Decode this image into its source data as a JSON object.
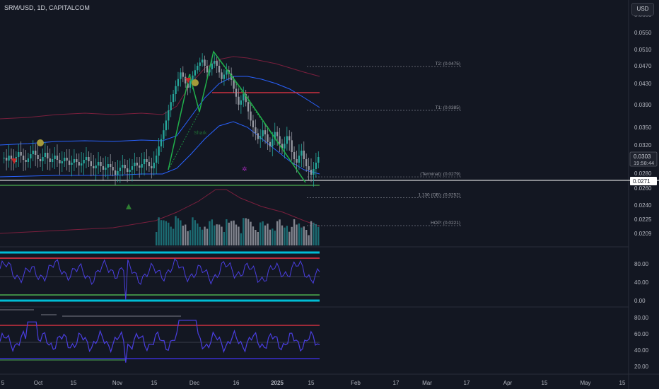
{
  "header": {
    "title": "SRM/USD, 1D, CAPITALCOM",
    "currency_button": "USD"
  },
  "colors": {
    "background": "#131722",
    "up_candle": "#26a69a",
    "down_candle": "#9598a1",
    "pattern": "#21b04b",
    "upper_band": "#7a1f3d",
    "mid_band": "#2962ff",
    "rsi_line": "#4a3ee0",
    "level_red": "#f23645",
    "level_green": "#4caf50",
    "level_cyan": "#00bcd4"
  },
  "chart_data": [
    {
      "type": "candlestick",
      "panel": "price",
      "y_ticks": [
        "0.0550",
        "0.0510",
        "0.0470",
        "0.0430",
        "0.0390",
        "0.0350",
        "0.0320",
        "0.0280",
        "0.0260",
        "0.0240",
        "0.0225",
        "0.0209"
      ],
      "top_tick_partial": "0.0600",
      "last_price": "0.0303",
      "countdown": "19:58:44",
      "crosshair_price": "0.0271",
      "x_ticks": [
        "5",
        "Oct",
        "15",
        "Nov",
        "15",
        "Dec",
        "16",
        "2025",
        "15",
        "Feb",
        "17",
        "Mar",
        "17",
        "Apr",
        "15",
        "May",
        "15"
      ],
      "levels": [
        {
          "label": "T2: (0.0475)",
          "value": 0.0475
        },
        {
          "label": "T1: (0.0385)",
          "value": 0.0385
        },
        {
          "label": "(Terminal): (0.0279)",
          "value": 0.0279
        },
        {
          "label": "1.130 (OB): (0.0252)",
          "value": 0.0252
        },
        {
          "label": "HOP: (0.0221)",
          "value": 0.0221
        }
      ],
      "pattern_label": "Shark",
      "series": {
        "close": [
          0.0302,
          0.0298,
          0.0305,
          0.03,
          0.0296,
          0.0303,
          0.031,
          0.0305,
          0.0299,
          0.0296,
          0.0301,
          0.0307,
          0.0312,
          0.0306,
          0.03,
          0.0297,
          0.0303,
          0.0309,
          0.0301,
          0.0296,
          0.03,
          0.0305,
          0.0299,
          0.0294,
          0.0297,
          0.0302,
          0.0298,
          0.0292,
          0.0295,
          0.03,
          0.0296,
          0.0291,
          0.0294,
          0.0299,
          0.0303,
          0.0297,
          0.029,
          0.0287,
          0.0291,
          0.0296,
          0.029,
          0.0285,
          0.0288,
          0.0293,
          0.0289,
          0.0284,
          0.0278,
          0.0283,
          0.0288,
          0.0292,
          0.0287,
          0.0282,
          0.0285,
          0.029,
          0.0295,
          0.0291,
          0.0288,
          0.0293,
          0.03,
          0.0296,
          0.029,
          0.0287,
          0.0295,
          0.0305,
          0.0318,
          0.033,
          0.0345,
          0.0362,
          0.038,
          0.0395,
          0.041,
          0.0425,
          0.044,
          0.0455,
          0.0445,
          0.043,
          0.0422,
          0.0435,
          0.0448,
          0.046,
          0.047,
          0.0478,
          0.0485,
          0.047,
          0.0455,
          0.0462,
          0.0475,
          0.0482,
          0.047,
          0.0455,
          0.044,
          0.045,
          0.046,
          0.0452,
          0.0438,
          0.042,
          0.0405,
          0.039,
          0.0398,
          0.041,
          0.0395,
          0.0378,
          0.0362,
          0.035,
          0.034,
          0.033,
          0.0335,
          0.0345,
          0.0338,
          0.0325,
          0.0318,
          0.033,
          0.0342,
          0.0335,
          0.0322,
          0.0315,
          0.0322,
          0.0335,
          0.0328,
          0.031,
          0.03,
          0.0295,
          0.0305,
          0.0312,
          0.03,
          0.029,
          0.0285,
          0.0278,
          0.0286,
          0.0295,
          0.0303
        ]
      }
    },
    {
      "type": "line",
      "panel": "oscillator_1",
      "y_ticks": [
        "80.00",
        "40.00",
        "0.00"
      ],
      "levels": [
        {
          "value": 100,
          "color": "cyan"
        },
        {
          "value": 85,
          "color": "red"
        },
        {
          "value": 10,
          "color": "green"
        },
        {
          "value": 0,
          "color": "cyan"
        }
      ]
    },
    {
      "type": "line",
      "panel": "oscillator_2",
      "y_ticks": [
        "80.00",
        "60.00",
        "40.00",
        "20.00"
      ],
      "levels": [
        {
          "value": 70,
          "color": "red"
        },
        {
          "value": 50,
          "color": "gray"
        },
        {
          "value": 30,
          "color": "blue"
        }
      ]
    }
  ]
}
